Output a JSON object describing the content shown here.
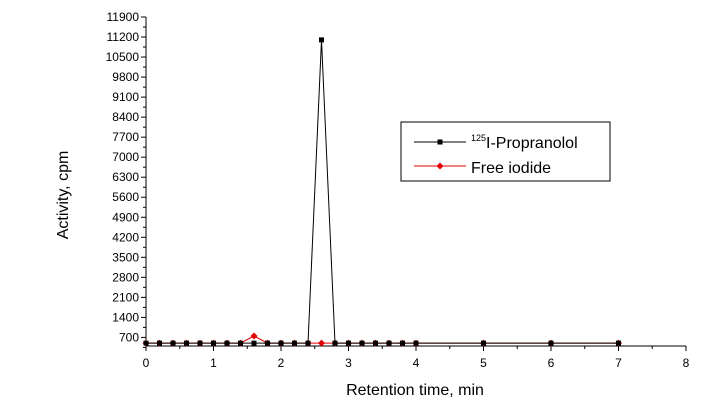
{
  "chart_data": {
    "type": "line",
    "xlabel": "Retention time, min",
    "ylabel": "Activity, cpm",
    "xlim": [
      0,
      8
    ],
    "ylim": [
      400,
      11900
    ],
    "xticks": [
      0,
      1,
      2,
      3,
      4,
      5,
      6,
      7,
      8
    ],
    "yticks": [
      700,
      1400,
      2100,
      2800,
      3500,
      4200,
      4900,
      5600,
      6300,
      7000,
      7700,
      8400,
      9100,
      9800,
      10500,
      11200,
      11900
    ],
    "legend_position": "upper-right",
    "grid": false,
    "series": [
      {
        "name_sup": "125",
        "name": "I-Propranolol",
        "color": "#000000",
        "marker": "square",
        "x": [
          0,
          0.2,
          0.4,
          0.6,
          0.8,
          1.0,
          1.2,
          1.4,
          1.6,
          1.8,
          2.0,
          2.2,
          2.4,
          2.6,
          2.8,
          3.0,
          3.2,
          3.4,
          3.6,
          3.8,
          4.0,
          5.0,
          6.0,
          7.0
        ],
        "y": [
          500,
          500,
          500,
          500,
          500,
          500,
          500,
          500,
          500,
          500,
          500,
          500,
          500,
          11100,
          500,
          500,
          500,
          500,
          500,
          500,
          500,
          500,
          500,
          500
        ]
      },
      {
        "name": "Free iodide",
        "color": "#e00000",
        "marker": "diamond",
        "x": [
          0,
          0.2,
          0.4,
          0.6,
          0.8,
          1.0,
          1.2,
          1.4,
          1.6,
          1.8,
          2.0,
          2.2,
          2.4,
          2.6,
          2.8,
          3.0,
          3.2,
          3.4,
          3.6,
          3.8,
          4.0,
          5.0,
          6.0,
          7.0
        ],
        "y": [
          500,
          500,
          500,
          500,
          500,
          500,
          500,
          500,
          750,
          500,
          500,
          500,
          500,
          500,
          500,
          500,
          500,
          500,
          500,
          500,
          500,
          500,
          500,
          500
        ]
      }
    ]
  }
}
